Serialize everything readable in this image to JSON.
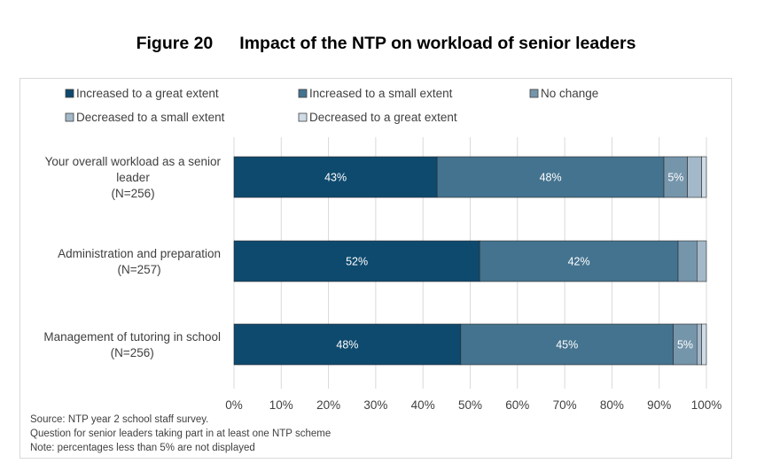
{
  "figure": {
    "number": "Figure 20",
    "title": "Impact of the NTP on workload of senior leaders"
  },
  "notes": {
    "source": "Source: NTP year 2 school staff survey.",
    "question": "Question for senior leaders taking part in at least one NTP scheme",
    "note": "Note: percentages less than 5% are not displayed"
  },
  "chart_data": {
    "type": "bar",
    "orientation": "horizontal",
    "stacked": true,
    "categories": [
      [
        "Your overall workload as a senior",
        "leader",
        "(N=256)"
      ],
      [
        "Administration and preparation",
        "(N=257)"
      ],
      [
        "Management of tutoring in school",
        "(N=256)"
      ]
    ],
    "series": [
      {
        "name": "Increased to a great extent",
        "color": "#0e4a6e",
        "values": [
          43,
          52,
          48
        ]
      },
      {
        "name": "Increased to a small extent",
        "color": "#44738f",
        "values": [
          48,
          42,
          45
        ]
      },
      {
        "name": "No change",
        "color": "#7595ab",
        "values": [
          5,
          4,
          5
        ]
      },
      {
        "name": "Decreased to a small extent",
        "color": "#a3b8c8",
        "values": [
          3,
          2,
          1
        ]
      },
      {
        "name": "Decreased to a great extent",
        "color": "#cfdce6",
        "values": [
          1,
          0,
          1
        ]
      }
    ],
    "x_ticks": [
      "0%",
      "10%",
      "20%",
      "30%",
      "40%",
      "50%",
      "60%",
      "70%",
      "80%",
      "90%",
      "100%"
    ],
    "xlim": [
      0,
      100
    ],
    "label_threshold": 5,
    "grid": true,
    "legend_position": "top"
  }
}
